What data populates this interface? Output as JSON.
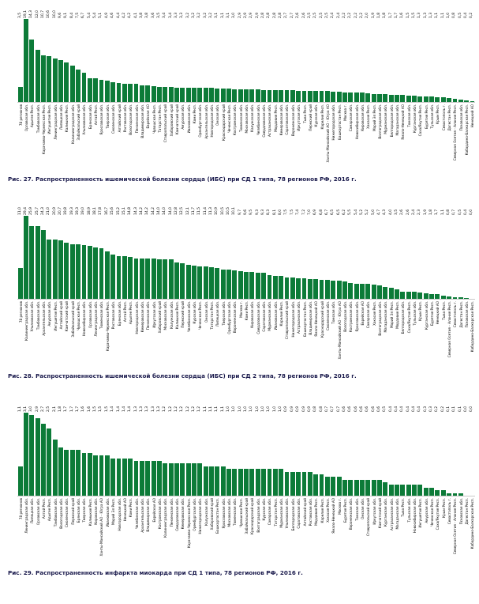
{
  "colors": {
    "bar": "#0c7b38",
    "caption": "#1b1b4d"
  },
  "chart_data": [
    {
      "type": "bar",
      "title": "Рис. 27. Распространенность ишемической болезни сердца (ИБС) при СД 1 типа, 78 регионов РФ, 2016 г.",
      "xlabel": "",
      "ylabel": "",
      "ylim": [
        0,
        19.1
      ],
      "grid": false,
      "legend": "none",
      "value_label_format": "decimal-comma",
      "categories": [
        "78 регионов",
        "Орловская обл.",
        "Адыгея Респ.",
        "Тамбовская обл.",
        "Карачаево-Черкесская Респ.",
        "Ингушетия Респ.",
        "Ленинградская обл.",
        "Липецкая обл.",
        "Калмыкия Респ.",
        "Калининградская обл.",
        "Забайкальский край",
        "Ульяновская обл.",
        "Брянская обл.",
        "Алтай Респ.",
        "Ярославская обл.",
        "Тверская обл.",
        "Смоленская обл.",
        "Алтайский край",
        "Ростовская обл.",
        "Вологодская обл.",
        "Пензенская обл.",
        "Владимирская обл.",
        "Еврейская АО",
        "Чувашская Респ.",
        "Татарстан Респ.",
        "Ставропольский край",
        "Хабаровский край",
        "Камчатский край",
        "Амурская обл.",
        "Ивановская обл.",
        "Коми Респ.",
        "Оренбургская обл.",
        "Архангельская обл.",
        "Новгородская обл.",
        "Омская обл.",
        "Краснодарский край",
        "Чеченская Респ.",
        "Костромская обл.",
        "Тюменская обл.",
        "Московская обл.",
        "Калужская обл.",
        "Челябинская обл.",
        "Свердловская обл.",
        "Астраханская обл.",
        "Мордовия Респ.",
        "Кемеровская обл.",
        "Саратовская обл.",
        "Воронежская обл.",
        "Иркутская обл.",
        "Тыва Респ.",
        "Пермский край",
        "Курская обл.",
        "Карелия Респ.",
        "Ханты-Мансийский АО - Югра АО",
        "Нижегородская обл.",
        "Башкортостан Респ.",
        "Москва г.",
        "Самарская обл.",
        "Новосибирская обл.",
        "Кировская обл.",
        "Хакасия Респ.",
        "Марий Эл Респ.",
        "Волгоградская обл.",
        "Мурманская обл.",
        "Белгородская обл.",
        "Магаданская обл.",
        "Ямало-Ненецкий АО",
        "Томская обл.",
        "Курганская обл.",
        "Саха/Якутия Респ.",
        "Бурятия Респ.",
        "Тульская обл.",
        "Крым Респ.",
        "Севастополь г.",
        "Дагестан Респ.",
        "Северная Осетия - Алания Респ.",
        "Псковская обл.",
        "Кабардино-Балкарская Респ.",
        "Ненецкий АО"
      ],
      "values": [
        3.5,
        19.1,
        14.3,
        12.0,
        10.7,
        10.6,
        10.0,
        9.6,
        9.1,
        8.4,
        7.5,
        6.7,
        5.4,
        5.4,
        5.1,
        4.9,
        4.6,
        4.4,
        4.2,
        4.2,
        4.1,
        3.8,
        3.8,
        3.6,
        3.5,
        3.4,
        3.4,
        3.3,
        3.3,
        3.2,
        3.2,
        3.2,
        3.2,
        3.2,
        3.1,
        3.1,
        3.1,
        3.0,
        2.9,
        2.9,
        2.9,
        2.9,
        2.8,
        2.8,
        2.8,
        2.8,
        2.7,
        2.7,
        2.6,
        2.6,
        2.5,
        2.5,
        2.5,
        2.5,
        2.4,
        2.4,
        2.2,
        2.2,
        2.2,
        2.2,
        2.0,
        1.9,
        1.8,
        1.8,
        1.7,
        1.7,
        1.6,
        1.5,
        1.5,
        1.3,
        1.3,
        1.3,
        1.1,
        1.1,
        1.0,
        0.8,
        0.5,
        0.4,
        0.2
      ]
    },
    {
      "type": "bar",
      "title": "Рис. 28. Распространенность ишемической болезни сердца (ИБС) при СД 2 типа, 78 регионов РФ, 2016 г.",
      "xlabel": "",
      "ylabel": "",
      "ylim": [
        0,
        29.4
      ],
      "grid": false,
      "legend": "none",
      "value_label_format": "decimal-comma",
      "categories": [
        "78 регионов",
        "Калининградская обл.",
        "Ульяновская обл.",
        "Тамбовская обл.",
        "Архангельская обл.",
        "Амурская обл.",
        "Ингушетия Респ.",
        "Алтайский край",
        "Камчатский край",
        "Забайкальский край",
        "Чувашская Респ.",
        "Новосибирская обл.",
        "Орловская обл.",
        "Ленинградская обл.",
        "Тюменская обл.",
        "Карачаево-Черкесская Респ.",
        "Ростовская обл.",
        "Брянская обл.",
        "Алтай Респ.",
        "Адыгея Респ.",
        "Новгородская обл.",
        "Кемеровская обл.",
        "Пензенская обл.",
        "Иркутская обл.",
        "Хабаровский край",
        "Московская обл.",
        "Калужская обл.",
        "Калмыкия Респ.",
        "Пермский край",
        "Челябинская обл.",
        "Курская обл.",
        "Чеченская Респ.",
        "Омская обл.",
        "Татарстан Респ.",
        "Липецкая обл.",
        "Тверская обл.",
        "Оренбургская обл.",
        "Воронежская обл.",
        "Москва г.",
        "Коми Респ.",
        "Кировская обл.",
        "Свердловская обл.",
        "Саратовская обл.",
        "Мурманская обл.",
        "Ивановская обл.",
        "Карелия Респ.",
        "Ставропольский край",
        "Нижегородская обл.",
        "Астраханская обл.",
        "Башкортостан Респ.",
        "Владимирская обл.",
        "Ямало-Ненецкий АО",
        "Краснодарский край",
        "Смоленская обл.",
        "Томская обл.",
        "Ханты-Мансийский АО - Югра АО",
        "Вологодская обл.",
        "Костромская обл.",
        "Ярославская обл.",
        "Еврейская АО",
        "Самарская обл.",
        "Хакасия Респ.",
        "Волгоградская обл.",
        "Магаданская обл.",
        "Марий Эл Респ.",
        "Мордовия Респ.",
        "Белгородская обл.",
        "Саха/Якутия Респ.",
        "Тульская обл.",
        "Крым Респ.",
        "Курганская обл.",
        "Бурятия Респ.",
        "Ненецкий АО",
        "Тыва Респ.",
        "Северная Осетия - Алания Респ.",
        "Севастополь г.",
        "Дагестан Респ.",
        "Псковская обл.",
        "Кабардино-Балкарская Респ."
      ],
      "values": [
        11.0,
        29.4,
        25.9,
        25.7,
        24.3,
        21.0,
        20.9,
        20.7,
        19.8,
        19.3,
        19.3,
        19.0,
        18.9,
        18.1,
        17.8,
        16.7,
        15.6,
        15.2,
        15.1,
        14.8,
        14.3,
        14.2,
        14.2,
        14.2,
        14.0,
        14.0,
        14.0,
        12.8,
        12.5,
        12.1,
        11.7,
        11.5,
        11.4,
        11.3,
        10.9,
        10.5,
        10.5,
        10.1,
        9.7,
        9.6,
        9.5,
        9.3,
        9.3,
        8.3,
        8.1,
        8.0,
        7.5,
        7.5,
        7.4,
        7.2,
        7.0,
        6.9,
        6.8,
        6.7,
        6.5,
        6.5,
        6.2,
        5.5,
        5.4,
        5.2,
        5.2,
        5.0,
        4.7,
        4.3,
        4.0,
        3.5,
        2.6,
        2.6,
        2.4,
        2.3,
        1.9,
        1.8,
        1.7,
        1.1,
        0.8,
        0.7,
        0.5,
        0.4,
        0.0
      ]
    },
    {
      "type": "bar",
      "title": "Рис. 29. Распространенность инфаркта миокарда при СД 1 типа, 78 регионов РФ, 2016 г.",
      "xlabel": "",
      "ylabel": "",
      "ylim": [
        0,
        3.1
      ],
      "grid": false,
      "legend": "none",
      "value_label_format": "decimal-comma",
      "categories": [
        "78 регионов",
        "Ленинградская обл.",
        "Липецкая обл.",
        "Орловская обл.",
        "Алтай Респ.",
        "Адыгея Респ.",
        "Тамбовская обл.",
        "Вологодская обл.",
        "Смоленская обл.",
        "Пермский край",
        "Брянская обл.",
        "Тверская обл.",
        "Калмыкия Респ.",
        "Кировская обл.",
        "Ханты-Мансийский АО - Югра АО",
        "Ивановская обл.",
        "Марий Эл Респ.",
        "Новгородская обл.",
        "Ненецкий АО",
        "Коми Респ.",
        "Челябинская обл.",
        "Архангельская обл.",
        "Владимирская обл.",
        "Еврейская АО",
        "Костромская обл.",
        "Калининградская обл.",
        "Пензенская обл.",
        "Свердловская обл.",
        "Кемеровская обл.",
        "Карачаево-Черкесская Респ.",
        "Оренбургская обл.",
        "Нижегородская обл.",
        "Калужская обл.",
        "Хабаровский край",
        "Башкортостан Респ.",
        "Ярославская обл.",
        "Московская обл.",
        "Тюменская обл.",
        "Чувашская Респ.",
        "Забайкальский край",
        "Краснодарский край",
        "Волгоградская обл.",
        "Курская обл.",
        "Самарская обл.",
        "Татарстан Респ.",
        "Мурманская обл.",
        "Ульяновская обл.",
        "Белгородская обл.",
        "Саратовская обл.",
        "Алтайский край",
        "Ростовская обл.",
        "Мордовия Респ.",
        "Карелия Респ.",
        "Хакасия Респ.",
        "Ямало-Ненецкий АО",
        "Москва г.",
        "Бурятия Респ.",
        "Воронежская обл.",
        "Томская обл.",
        "Омская обл.",
        "Ставропольский край",
        "Иркутская обл.",
        "Камчатский край",
        "Курганская обл.",
        "Астраханская обл.",
        "Магаданская обл.",
        "Тыва Респ.",
        "Тульская обл.",
        "Новосибирская обл.",
        "Ингушетия Респ.",
        "Амурская обл.",
        "Чеченская Респ.",
        "Саха/Якутия Респ.",
        "Крым Респ.",
        "Севастополь г.",
        "Северная Осетия - Алания Респ.",
        "Псковская обл.",
        "Дагестан Респ.",
        "Кабардино-Балкарская Респ."
      ],
      "values": [
        1.1,
        3.1,
        3.0,
        2.9,
        2.7,
        2.5,
        2.1,
        1.8,
        1.7,
        1.7,
        1.7,
        1.6,
        1.6,
        1.5,
        1.5,
        1.5,
        1.4,
        1.4,
        1.4,
        1.4,
        1.3,
        1.3,
        1.3,
        1.3,
        1.3,
        1.2,
        1.2,
        1.2,
        1.2,
        1.2,
        1.2,
        1.2,
        1.1,
        1.1,
        1.1,
        1.1,
        1.0,
        1.0,
        1.0,
        1.0,
        1.0,
        1.0,
        1.0,
        1.0,
        1.0,
        1.0,
        0.9,
        0.9,
        0.9,
        0.9,
        0.9,
        0.8,
        0.8,
        0.7,
        0.7,
        0.7,
        0.6,
        0.6,
        0.6,
        0.6,
        0.6,
        0.6,
        0.6,
        0.5,
        0.4,
        0.4,
        0.4,
        0.4,
        0.4,
        0.4,
        0.3,
        0.3,
        0.2,
        0.2,
        0.1,
        0.1,
        0.1,
        0.0,
        0.0
      ]
    }
  ]
}
